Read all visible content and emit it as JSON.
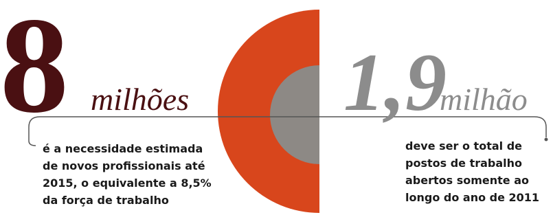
{
  "left": {
    "number": "8",
    "unit": "milhões",
    "lines": [
      "é a necessidade estimada",
      "de novos profissionais até",
      "2015, o equivalente a 8,5%",
      "da força de trabalho"
    ]
  },
  "right": {
    "number": "1,9",
    "unit": "milhão",
    "lines": [
      "deve ser o total de",
      "postos de trabalho",
      "abertos somente ao",
      "longo do ano de 2011"
    ]
  }
}
